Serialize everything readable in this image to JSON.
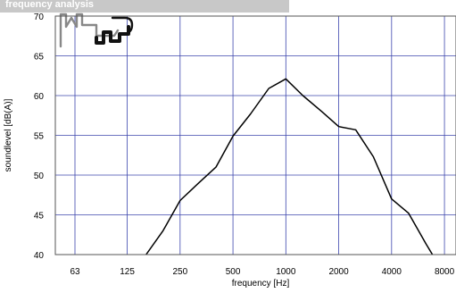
{
  "header": {
    "title": "frequency analysis"
  },
  "chart_data": {
    "type": "line",
    "title": "frequency analysis",
    "xlabel": "frequency [Hz]",
    "ylabel": "soundlevel [dB(A)]",
    "x_scale": "log2",
    "xticks": [
      63,
      125,
      250,
      500,
      1000,
      2000,
      4000,
      8000
    ],
    "xtick_labels": [
      "63",
      "125",
      "250",
      "500",
      "1000",
      "2000",
      "4000",
      "8000"
    ],
    "yticks": [
      40,
      45,
      50,
      55,
      60,
      65,
      70
    ],
    "ylim": [
      40,
      70
    ],
    "grid": true,
    "line_color": "#000000",
    "grid_color": "#3c46ad",
    "series": [
      {
        "x": [
          125,
          160,
          200,
          250,
          315,
          400,
          500,
          630,
          800,
          1000,
          1250,
          1600,
          2000,
          2500,
          3150,
          4000,
          5000,
          6300,
          8000
        ],
        "values": [
          34.5,
          40,
          43,
          46.8,
          48.9,
          51,
          54.9,
          57.7,
          60.9,
          62.1,
          60,
          58,
          56.1,
          55.7,
          52.3,
          47,
          45.2,
          41.3,
          37.5
        ]
      }
    ]
  }
}
